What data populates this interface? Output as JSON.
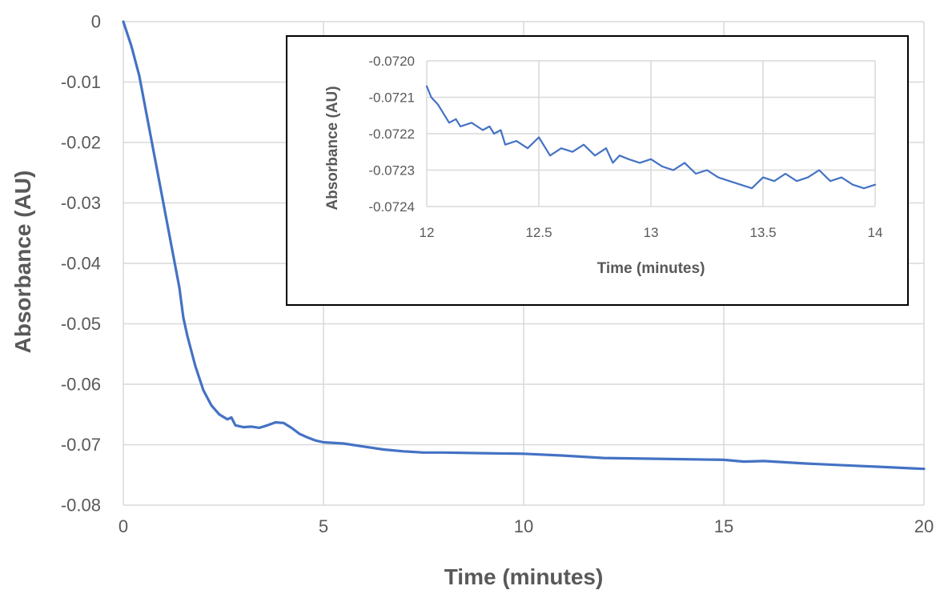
{
  "chart_data": [
    {
      "id": "main",
      "type": "line",
      "title": "",
      "xlabel": "Time (minutes)",
      "ylabel": "Absorbance (AU)",
      "xlim": [
        0,
        20
      ],
      "ylim": [
        -0.08,
        0
      ],
      "x_ticks": [
        0,
        5,
        10,
        15,
        20
      ],
      "x_tick_labels": [
        "0",
        "5",
        "10",
        "15",
        "20"
      ],
      "y_ticks": [
        0,
        -0.01,
        -0.02,
        -0.03,
        -0.04,
        -0.05,
        -0.06,
        -0.07,
        -0.08
      ],
      "y_tick_labels": [
        "0",
        "-0.01",
        "-0.02",
        "-0.03",
        "-0.04",
        "-0.05",
        "-0.06",
        "-0.07",
        "-0.08"
      ],
      "grid": true,
      "legend": "none",
      "series": [
        {
          "color": "#4472c4",
          "x": [
            0,
            0.2,
            0.4,
            0.6,
            0.8,
            1.0,
            1.2,
            1.4,
            1.5,
            1.6,
            1.8,
            2.0,
            2.2,
            2.4,
            2.6,
            2.7,
            2.8,
            3.0,
            3.2,
            3.4,
            3.6,
            3.8,
            4.0,
            4.2,
            4.4,
            4.6,
            4.8,
            5.0,
            5.5,
            6.0,
            6.5,
            7.0,
            7.5,
            8.0,
            9.0,
            10.0,
            11.0,
            12.0,
            13.0,
            14.0,
            15.0,
            15.5,
            16.0,
            16.5,
            17.0,
            18.0,
            19.0,
            20.0
          ],
          "y": [
            0,
            -0.004,
            -0.009,
            -0.016,
            -0.023,
            -0.03,
            -0.037,
            -0.044,
            -0.049,
            -0.052,
            -0.057,
            -0.061,
            -0.0635,
            -0.065,
            -0.0658,
            -0.0655,
            -0.0668,
            -0.0671,
            -0.067,
            -0.0672,
            -0.0668,
            -0.0663,
            -0.0664,
            -0.0672,
            -0.0682,
            -0.0688,
            -0.0693,
            -0.0696,
            -0.0698,
            -0.0703,
            -0.0708,
            -0.0711,
            -0.0713,
            -0.0713,
            -0.0714,
            -0.0715,
            -0.0718,
            -0.0722,
            -0.0723,
            -0.0724,
            -0.0725,
            -0.0728,
            -0.0727,
            -0.0729,
            -0.0731,
            -0.0734,
            -0.0737,
            -0.074
          ]
        }
      ]
    },
    {
      "id": "inset",
      "type": "line",
      "title": "",
      "xlabel": "Time (minutes)",
      "ylabel": "Absorbance (AU)",
      "xlim": [
        12,
        14
      ],
      "ylim": [
        -0.0724,
        -0.072
      ],
      "x_ticks": [
        12,
        12.5,
        13,
        13.5,
        14
      ],
      "x_tick_labels": [
        "12",
        "12.5",
        "13",
        "13.5",
        "14"
      ],
      "y_ticks": [
        -0.072,
        -0.0721,
        -0.0722,
        -0.0723,
        -0.0724
      ],
      "y_tick_labels": [
        "-0.0720",
        "-0.0721",
        "-0.0722",
        "-0.0723",
        "-0.0724"
      ],
      "grid": true,
      "legend": "none",
      "series": [
        {
          "color": "#4472c4",
          "x": [
            12.0,
            12.02,
            12.05,
            12.08,
            12.1,
            12.13,
            12.15,
            12.2,
            12.25,
            12.28,
            12.3,
            12.33,
            12.35,
            12.4,
            12.45,
            12.5,
            12.55,
            12.6,
            12.65,
            12.7,
            12.75,
            12.8,
            12.83,
            12.86,
            12.9,
            12.95,
            13.0,
            13.05,
            13.1,
            13.15,
            13.2,
            13.25,
            13.3,
            13.35,
            13.4,
            13.45,
            13.5,
            13.55,
            13.6,
            13.65,
            13.7,
            13.75,
            13.8,
            13.85,
            13.9,
            13.95,
            14.0
          ],
          "y": [
            -0.07207,
            -0.0721,
            -0.07212,
            -0.07215,
            -0.07217,
            -0.07216,
            -0.07218,
            -0.07217,
            -0.07219,
            -0.07218,
            -0.0722,
            -0.07219,
            -0.07223,
            -0.07222,
            -0.07224,
            -0.07221,
            -0.07226,
            -0.07224,
            -0.07225,
            -0.07223,
            -0.07226,
            -0.07224,
            -0.07228,
            -0.07226,
            -0.07227,
            -0.07228,
            -0.07227,
            -0.07229,
            -0.0723,
            -0.07228,
            -0.07231,
            -0.0723,
            -0.07232,
            -0.07233,
            -0.07234,
            -0.07235,
            -0.07232,
            -0.07233,
            -0.07231,
            -0.07233,
            -0.07232,
            -0.0723,
            -0.07233,
            -0.07232,
            -0.07234,
            -0.07235,
            -0.07234
          ]
        }
      ]
    }
  ]
}
